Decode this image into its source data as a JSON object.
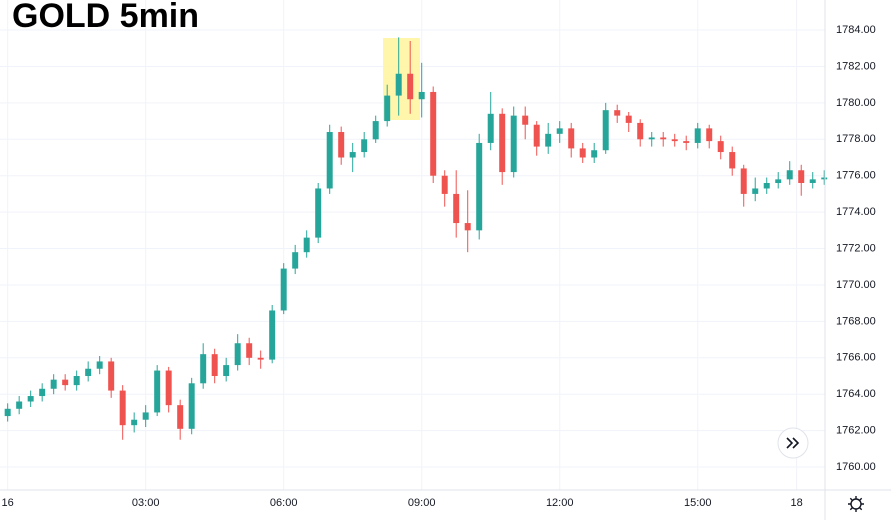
{
  "chart_data": {
    "type": "candlestick",
    "title": "GOLD 5min",
    "x": [
      0,
      15,
      30,
      45,
      60,
      75,
      90,
      105,
      120,
      135,
      150,
      165,
      180,
      195,
      210,
      225,
      240,
      255,
      270,
      285,
      300,
      315,
      330,
      345,
      360,
      375,
      390,
      405,
      420,
      435,
      450,
      465,
      480,
      495,
      510,
      525,
      540,
      555,
      570,
      585,
      600,
      615,
      630,
      645,
      660,
      675,
      690,
      705,
      720,
      735,
      750,
      765,
      780,
      795,
      810,
      825,
      840,
      855,
      870,
      885,
      900,
      915,
      930,
      945,
      960,
      975,
      990,
      1005,
      1020,
      1035,
      1050,
      1065
    ],
    "open": [
      1762.8,
      1763.2,
      1763.6,
      1763.9,
      1764.3,
      1764.8,
      1764.5,
      1765.0,
      1765.4,
      1765.8,
      1764.2,
      1762.3,
      1762.6,
      1763.0,
      1765.3,
      1763.4,
      1762.1,
      1764.6,
      1766.2,
      1765.0,
      1765.6,
      1766.8,
      1766.0,
      1765.9,
      1768.6,
      1770.9,
      1771.8,
      1772.6,
      1775.3,
      1778.4,
      1777.0,
      1777.3,
      1778.0,
      1779.0,
      1780.4,
      1781.6,
      1780.2,
      1780.6,
      1776.0,
      1775.0,
      1773.4,
      1773.0,
      1777.8,
      1779.4,
      1776.2,
      1779.3,
      1778.8,
      1777.6,
      1778.3,
      1778.6,
      1777.5,
      1777.0,
      1777.4,
      1779.6,
      1779.3,
      1778.9,
      1778.0,
      1778.1,
      1778.0,
      1777.9,
      1777.8,
      1778.6,
      1777.9,
      1777.3,
      1776.4,
      1775.0,
      1775.3,
      1775.6,
      1775.8,
      1776.3,
      1775.6,
      1775.8
    ],
    "high": [
      1763.5,
      1763.9,
      1764.2,
      1764.6,
      1765.1,
      1765.1,
      1765.3,
      1765.8,
      1766.1,
      1766.0,
      1764.5,
      1763.0,
      1763.4,
      1765.6,
      1765.5,
      1763.7,
      1764.9,
      1766.8,
      1766.5,
      1766.0,
      1767.3,
      1767.1,
      1766.4,
      1768.9,
      1771.2,
      1772.2,
      1773.0,
      1775.6,
      1778.8,
      1778.7,
      1777.8,
      1778.4,
      1779.3,
      1781.0,
      1783.6,
      1783.4,
      1782.2,
      1780.9,
      1776.3,
      1776.3,
      1775.2,
      1778.3,
      1780.6,
      1779.7,
      1779.8,
      1779.8,
      1779.0,
      1778.9,
      1779.0,
      1778.9,
      1777.8,
      1777.8,
      1780.0,
      1779.9,
      1779.5,
      1779.1,
      1778.4,
      1778.4,
      1778.3,
      1778.2,
      1778.9,
      1778.8,
      1778.2,
      1777.6,
      1776.6,
      1775.9,
      1775.9,
      1776.2,
      1776.8,
      1776.6,
      1776.2,
      1776.3
    ],
    "low": [
      1762.5,
      1762.9,
      1763.3,
      1763.6,
      1764.0,
      1764.2,
      1764.2,
      1764.7,
      1765.1,
      1763.8,
      1761.5,
      1761.9,
      1762.2,
      1762.8,
      1763.0,
      1761.5,
      1761.8,
      1764.3,
      1764.6,
      1764.7,
      1765.3,
      1765.6,
      1765.4,
      1765.7,
      1768.4,
      1770.6,
      1771.5,
      1772.3,
      1775.0,
      1776.6,
      1776.2,
      1777.0,
      1777.8,
      1778.7,
      1779.3,
      1779.4,
      1779.2,
      1775.6,
      1774.3,
      1772.6,
      1771.8,
      1772.5,
      1777.4,
      1775.5,
      1775.9,
      1778.0,
      1777.1,
      1777.2,
      1777.8,
      1777.0,
      1776.7,
      1776.7,
      1777.2,
      1778.9,
      1778.4,
      1777.6,
      1777.6,
      1777.6,
      1777.6,
      1777.4,
      1777.5,
      1777.5,
      1776.9,
      1776.0,
      1774.3,
      1774.6,
      1775.0,
      1775.3,
      1775.5,
      1774.9,
      1775.3,
      1775.5
    ],
    "close": [
      1763.2,
      1763.6,
      1763.9,
      1764.3,
      1764.8,
      1764.5,
      1765.0,
      1765.4,
      1765.8,
      1764.2,
      1762.3,
      1762.6,
      1763.0,
      1765.3,
      1763.4,
      1762.1,
      1764.6,
      1766.2,
      1765.0,
      1765.6,
      1766.8,
      1766.0,
      1765.9,
      1768.6,
      1770.9,
      1771.8,
      1772.6,
      1775.3,
      1778.4,
      1777.0,
      1777.3,
      1778.0,
      1779.0,
      1780.4,
      1781.6,
      1780.2,
      1780.6,
      1776.0,
      1775.0,
      1773.4,
      1773.0,
      1777.8,
      1779.4,
      1776.2,
      1779.3,
      1778.8,
      1777.6,
      1778.3,
      1778.6,
      1777.5,
      1777.0,
      1777.4,
      1779.6,
      1779.3,
      1778.9,
      1778.0,
      1778.1,
      1778.0,
      1777.9,
      1777.8,
      1778.6,
      1777.9,
      1777.3,
      1776.4,
      1775.0,
      1775.3,
      1775.6,
      1775.8,
      1776.3,
      1775.6,
      1775.8,
      1775.9
    ],
    "up_color": "#26a69a",
    "down_color": "#ef5350",
    "xlim": [
      -10,
      1066
    ],
    "xticks": [
      {
        "value": 0,
        "label": "16"
      },
      {
        "value": 180,
        "label": "03:00"
      },
      {
        "value": 360,
        "label": "06:00"
      },
      {
        "value": 540,
        "label": "09:00"
      },
      {
        "value": 720,
        "label": "12:00"
      },
      {
        "value": 900,
        "label": "15:00"
      },
      {
        "value": 1029,
        "label": "18"
      }
    ],
    "ylim": [
      1758.74,
      1785.65
    ],
    "yticks": [
      {
        "value": 1760,
        "label": "1760.00"
      },
      {
        "value": 1762,
        "label": "1762.00"
      },
      {
        "value": 1764,
        "label": "1764.00"
      },
      {
        "value": 1766,
        "label": "1766.00"
      },
      {
        "value": 1768,
        "label": "1768.00"
      },
      {
        "value": 1770,
        "label": "1770.00"
      },
      {
        "value": 1772,
        "label": "1772.00"
      },
      {
        "value": 1774,
        "label": "1774.00"
      },
      {
        "value": 1776,
        "label": "1776.00"
      },
      {
        "value": 1778,
        "label": "1778.00"
      },
      {
        "value": 1780,
        "label": "1780.00"
      },
      {
        "value": 1782,
        "label": "1782.00"
      },
      {
        "value": 1784,
        "label": "1784.00"
      }
    ],
    "grid": true
  }
}
